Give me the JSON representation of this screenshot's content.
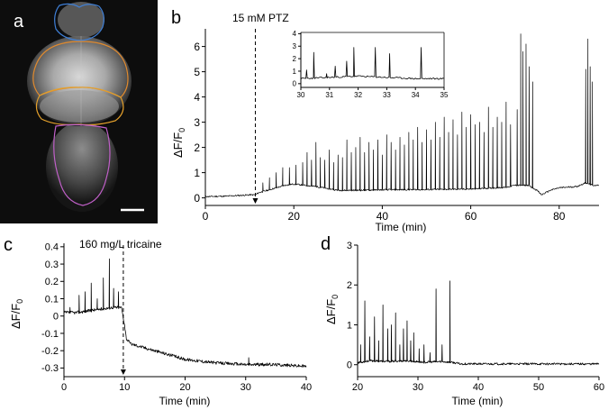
{
  "figure": {
    "panel_a": {
      "letter": "a",
      "region_colors": {
        "forebrain": "#3f7fd6",
        "midbrain": "#e08a2e",
        "cerebellum": "#e3a02c",
        "hindbrain": "#c060c8"
      }
    },
    "panel_b": {
      "letter": "b",
      "annotation": "15 mM PTZ",
      "xlabel": "Time (min)",
      "ylabel_main": "ΔF/F",
      "ylabel_sub": "0"
    },
    "panel_c": {
      "letter": "c",
      "annotation": "160 mg/L tricaine",
      "xlabel": "Time (min)",
      "ylabel_main": "ΔF/F",
      "ylabel_sub": "0"
    },
    "panel_d": {
      "letter": "d",
      "xlabel": "Time (min)",
      "ylabel_main": "ΔF/F",
      "ylabel_sub": "0"
    }
  },
  "chart_data": [
    {
      "id": "b",
      "type": "line",
      "xlabel": "Time (min)",
      "ylabel": "ΔF/F0",
      "xlim": [
        0,
        89
      ],
      "ylim": [
        -0.3,
        6.7
      ],
      "xticks": [
        0,
        20,
        40,
        60,
        80
      ],
      "yticks": [
        0,
        1,
        2,
        3,
        4,
        5,
        6
      ],
      "event_x": 11.3,
      "baseline": [
        [
          0,
          0.05
        ],
        [
          5,
          0.07
        ],
        [
          10,
          0.12
        ],
        [
          11.3,
          0.12
        ],
        [
          12,
          0.2
        ],
        [
          14,
          0.3
        ],
        [
          16,
          0.4
        ],
        [
          18,
          0.5
        ],
        [
          20,
          0.55
        ],
        [
          25,
          0.45
        ],
        [
          30,
          0.3
        ],
        [
          35,
          0.3
        ],
        [
          40,
          0.32
        ],
        [
          50,
          0.33
        ],
        [
          60,
          0.35
        ],
        [
          68,
          0.42
        ],
        [
          70,
          0.5
        ],
        [
          73,
          0.5
        ],
        [
          75,
          0.3
        ],
        [
          76,
          0.12
        ],
        [
          78,
          0.3
        ],
        [
          80,
          0.4
        ],
        [
          84,
          0.45
        ],
        [
          86,
          0.6
        ],
        [
          87.5,
          0.5
        ]
      ],
      "spikes": [
        [
          13,
          0.6
        ],
        [
          14.5,
          0.8
        ],
        [
          16,
          1.0
        ],
        [
          17.5,
          1.2
        ],
        [
          19,
          1.2
        ],
        [
          20.5,
          1.3
        ],
        [
          22,
          1.4
        ],
        [
          23,
          1.8
        ],
        [
          24,
          1.5
        ],
        [
          25,
          2.2
        ],
        [
          26,
          1.6
        ],
        [
          27,
          1.5
        ],
        [
          28,
          1.9
        ],
        [
          29,
          1.4
        ],
        [
          30,
          1.7
        ],
        [
          31,
          1.6
        ],
        [
          32,
          2.3
        ],
        [
          33,
          1.8
        ],
        [
          34,
          2.0
        ],
        [
          35,
          2.4
        ],
        [
          36,
          1.8
        ],
        [
          37,
          2.2
        ],
        [
          38,
          1.9
        ],
        [
          39,
          2.3
        ],
        [
          40,
          1.7
        ],
        [
          41,
          2.5
        ],
        [
          42,
          2.2
        ],
        [
          43,
          1.9
        ],
        [
          44,
          2.4
        ],
        [
          45,
          2.1
        ],
        [
          46,
          2.6
        ],
        [
          47,
          2.3
        ],
        [
          48,
          2.8
        ],
        [
          49,
          2.2
        ],
        [
          50,
          2.7
        ],
        [
          51,
          2.3
        ],
        [
          52,
          3.0
        ],
        [
          53,
          2.4
        ],
        [
          54,
          3.2
        ],
        [
          55,
          2.6
        ],
        [
          56,
          3.1
        ],
        [
          57,
          2.5
        ],
        [
          58,
          3.4
        ],
        [
          59,
          2.8
        ],
        [
          60,
          3.3
        ],
        [
          61,
          2.9
        ],
        [
          62,
          3.0
        ],
        [
          63,
          2.6
        ],
        [
          64,
          3.6
        ],
        [
          65,
          2.8
        ],
        [
          66,
          3.2
        ],
        [
          67,
          3.0
        ],
        [
          68,
          3.8
        ],
        [
          69,
          2.9
        ],
        [
          70.5,
          3.5
        ],
        [
          71.3,
          6.5
        ],
        [
          71.8,
          5.8
        ],
        [
          72.5,
          6.1
        ],
        [
          73.2,
          5.2
        ],
        [
          74,
          4.6
        ],
        [
          86,
          5.1
        ],
        [
          86.5,
          6.3
        ],
        [
          87,
          5.2
        ],
        [
          87.5,
          4.6
        ]
      ],
      "inset": {
        "xlim": [
          30,
          35
        ],
        "ylim": [
          -0.3,
          4.1
        ],
        "xticks": [
          30,
          31,
          32,
          33,
          34,
          35
        ],
        "yticks": [
          0,
          1,
          2,
          3,
          4
        ],
        "baseline": [
          [
            30,
            0.4
          ],
          [
            31,
            0.5
          ],
          [
            32,
            0.6
          ],
          [
            33,
            0.5
          ],
          [
            34,
            0.4
          ],
          [
            35,
            0.4
          ]
        ],
        "spikes": [
          [
            30.2,
            1.1
          ],
          [
            30.45,
            2.5
          ],
          [
            30.9,
            0.8
          ],
          [
            31.2,
            1.4
          ],
          [
            31.6,
            1.8
          ],
          [
            31.85,
            2.9
          ],
          [
            32.6,
            2.9
          ],
          [
            33.1,
            2.4
          ],
          [
            34.2,
            2.9
          ]
        ]
      }
    },
    {
      "id": "c",
      "type": "line",
      "xlabel": "Time (min)",
      "ylabel": "ΔF/F0",
      "xlim": [
        0,
        40
      ],
      "ylim": [
        -0.35,
        0.42
      ],
      "xticks": [
        0,
        10,
        20,
        30,
        40
      ],
      "yticks": [
        0.4,
        0.3,
        0.2,
        0.1,
        0,
        -0.1,
        -0.2,
        -0.3
      ],
      "event_x": 9.8,
      "baseline": [
        [
          0,
          0.02
        ],
        [
          2,
          0.02
        ],
        [
          4,
          0.03
        ],
        [
          6,
          0.04
        ],
        [
          8,
          0.05
        ],
        [
          9.5,
          0.05
        ],
        [
          10,
          -0.05
        ],
        [
          10.3,
          -0.13
        ],
        [
          11,
          -0.16
        ],
        [
          13,
          -0.18
        ],
        [
          15,
          -0.2
        ],
        [
          17,
          -0.22
        ],
        [
          20,
          -0.25
        ],
        [
          25,
          -0.27
        ],
        [
          30,
          -0.28
        ],
        [
          35,
          -0.28
        ],
        [
          40,
          -0.29
        ]
      ],
      "spikes": [
        [
          1,
          0.05
        ],
        [
          2.5,
          0.12
        ],
        [
          3.5,
          0.14
        ],
        [
          4.5,
          0.19
        ],
        [
          5.5,
          0.1
        ],
        [
          6.5,
          0.22
        ],
        [
          7.5,
          0.33
        ],
        [
          8.2,
          0.16
        ],
        [
          9,
          0.14
        ],
        [
          30.5,
          -0.24
        ]
      ]
    },
    {
      "id": "d",
      "type": "line",
      "xlabel": "Time (min)",
      "ylabel": "ΔF/F0",
      "xlim": [
        20,
        60
      ],
      "ylim": [
        -0.3,
        3.0
      ],
      "xticks": [
        20,
        30,
        40,
        50,
        60
      ],
      "yticks": [
        0,
        1,
        2,
        3
      ],
      "baseline": [
        [
          20,
          0.05
        ],
        [
          22,
          0.1
        ],
        [
          25,
          0.08
        ],
        [
          28,
          0.1
        ],
        [
          31,
          0.06
        ],
        [
          34,
          0.08
        ],
        [
          36,
          0.05
        ],
        [
          37,
          0.02
        ],
        [
          45,
          0.02
        ],
        [
          55,
          0.02
        ],
        [
          60,
          0.02
        ]
      ],
      "spikes": [
        [
          20.5,
          0.5
        ],
        [
          21.2,
          1.6
        ],
        [
          22,
          0.7
        ],
        [
          22.8,
          1.2
        ],
        [
          23.5,
          0.6
        ],
        [
          24.2,
          1.5
        ],
        [
          25,
          0.9
        ],
        [
          25.6,
          1.0
        ],
        [
          26.3,
          1.3
        ],
        [
          27,
          0.5
        ],
        [
          27.6,
          0.9
        ],
        [
          28.2,
          1.1
        ],
        [
          28.8,
          0.6
        ],
        [
          29.3,
          0.8
        ],
        [
          30.2,
          0.4
        ],
        [
          31,
          0.5
        ],
        [
          32,
          0.3
        ],
        [
          33,
          1.9
        ],
        [
          34,
          0.5
        ],
        [
          35.3,
          2.1
        ]
      ]
    }
  ]
}
